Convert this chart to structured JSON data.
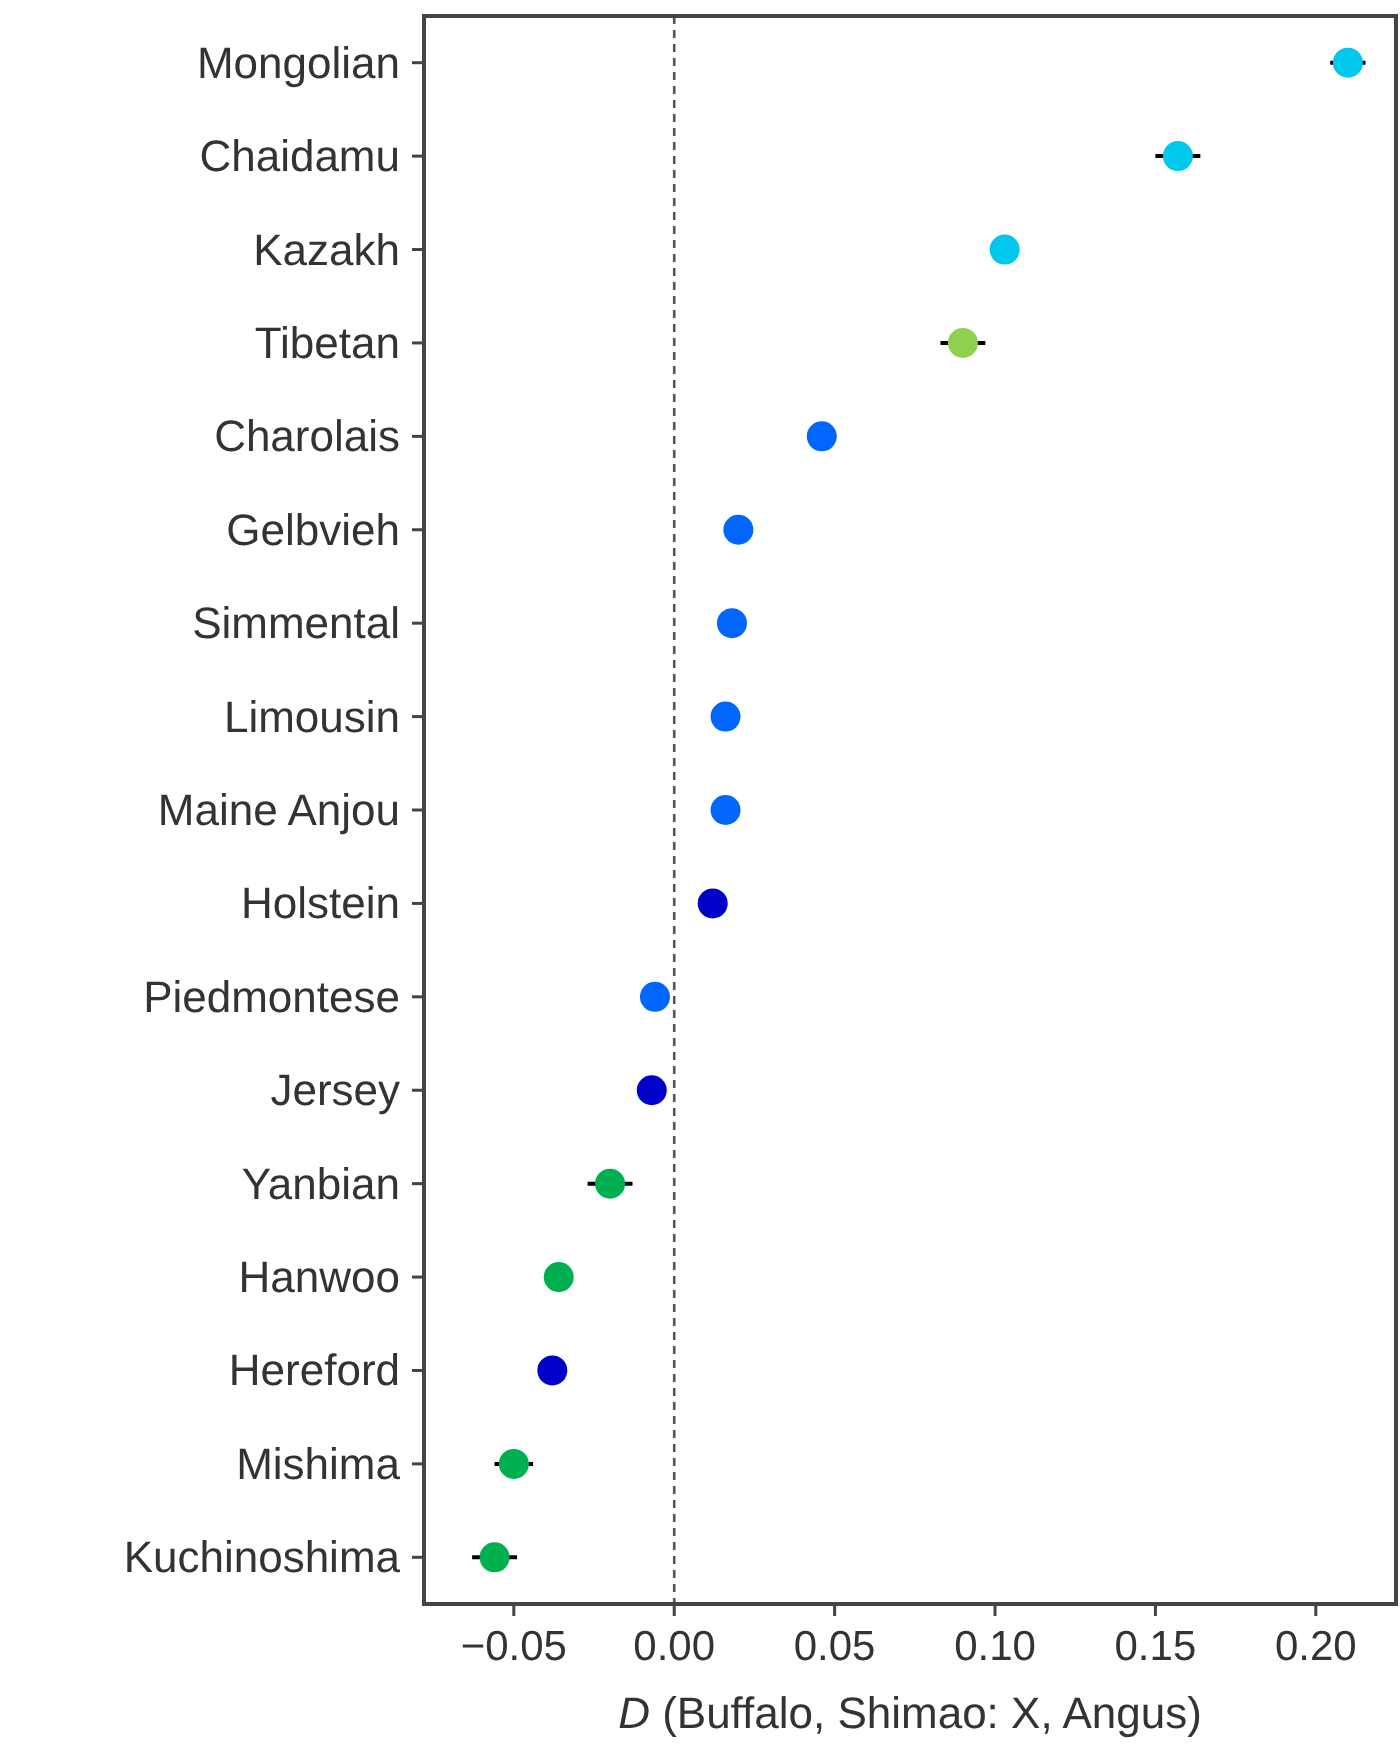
{
  "chart_data": {
    "type": "scatter",
    "orientation": "horizontal",
    "xlabel": "D (Buffalo, Shimao: X, Angus)",
    "categories": [
      "Mongolian",
      "Chaidamu",
      "Kazakh",
      "Tibetan",
      "Charolais",
      "Gelbvieh",
      "Simmental",
      "Limousin",
      "Maine Anjou",
      "Holstein",
      "Piedmontese",
      "Jersey",
      "Yanbian",
      "Hanwoo",
      "Hereford",
      "Mishima",
      "Kuchinoshima"
    ],
    "series": [
      {
        "values": [
          0.21,
          0.157,
          0.103,
          0.09,
          0.046,
          0.02,
          0.018,
          0.016,
          0.016,
          0.012,
          -0.006,
          -0.007,
          -0.02,
          -0.036,
          -0.038,
          -0.05,
          -0.056
        ],
        "colors": [
          "#00c8ec",
          "#00c8ec",
          "#00c8ec",
          "#8fd14f",
          "#0066ff",
          "#0066ff",
          "#0066ff",
          "#0066ff",
          "#0066ff",
          "#0000c8",
          "#0066ff",
          "#0000c8",
          "#00b050",
          "#00b050",
          "#0000c8",
          "#00b050",
          "#00b050"
        ],
        "errors": [
          0.0055,
          0.007,
          null,
          0.007,
          null,
          null,
          null,
          null,
          null,
          null,
          null,
          null,
          0.007,
          null,
          null,
          0.006,
          0.007
        ]
      }
    ],
    "xlim": [
      -0.078,
      0.225
    ],
    "xticks": [
      {
        "value": -0.05,
        "label": "−0.05"
      },
      {
        "value": 0,
        "label": "0.00"
      },
      {
        "value": 0.05,
        "label": "0.05"
      },
      {
        "value": 0.1,
        "label": "0.10"
      },
      {
        "value": 0.15,
        "label": "0.15"
      },
      {
        "value": 0.2,
        "label": "0.20"
      }
    ],
    "ref_lines": [
      {
        "axis": "x",
        "value": 0,
        "color": "#555555",
        "line_style": "dashed"
      }
    ],
    "marker": "circle",
    "grid": false
  }
}
